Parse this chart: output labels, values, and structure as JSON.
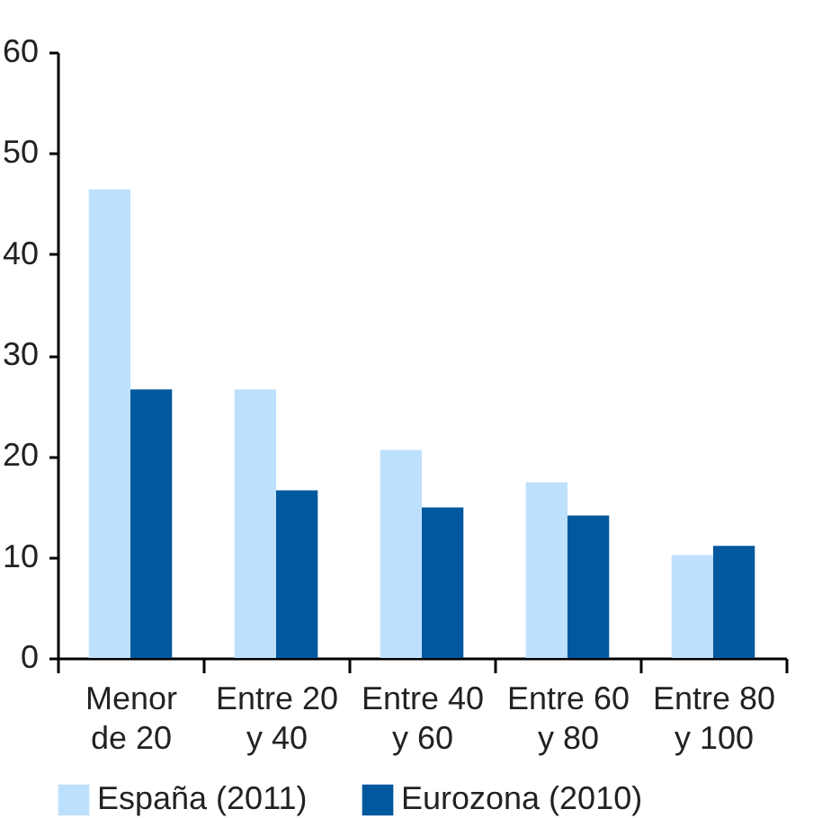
{
  "chart_data": {
    "type": "bar",
    "categories": [
      "Menor\nde 20",
      "Entre 20\ny 40",
      "Entre 40\ny 60",
      "Entre 60\ny 80",
      "Entre 80\ny 100"
    ],
    "series": [
      {
        "name": "España (2011)",
        "color": "#bde0fd",
        "values": [
          46.4,
          26.6,
          20.6,
          17.4,
          10.2
        ]
      },
      {
        "name": "Eurozona (2010)",
        "color": "#00589e",
        "values": [
          26.6,
          16.6,
          14.9,
          14.1,
          11.1
        ]
      }
    ],
    "ylim": [
      0,
      60
    ],
    "yticks": [
      0,
      10,
      20,
      30,
      40,
      50,
      60
    ],
    "grid": false,
    "legend": "bottom"
  }
}
